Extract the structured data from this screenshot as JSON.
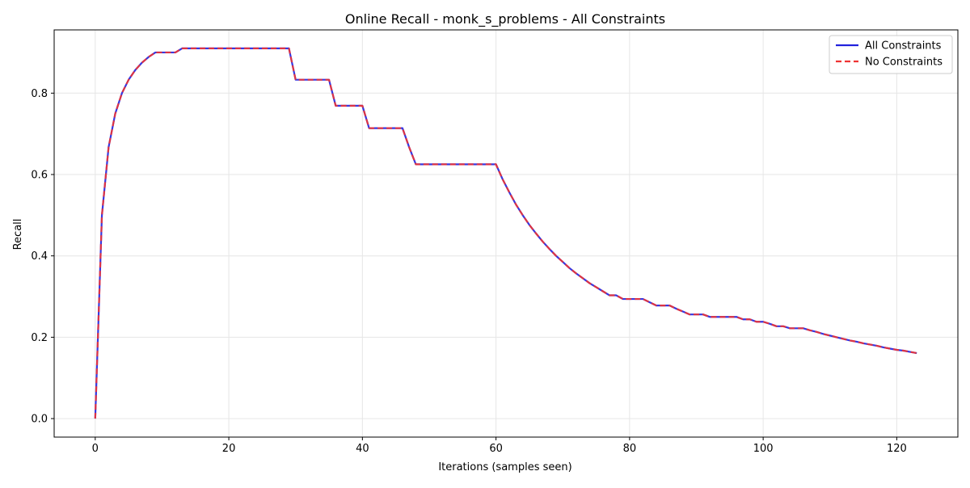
{
  "chart_data": {
    "type": "line",
    "title": "Online Recall - monk_s_problems - All Constraints",
    "xlabel": "Iterations (samples seen)",
    "ylabel": "Recall",
    "xlim": [
      -6.15,
      129.15
    ],
    "ylim": [
      -0.0455,
      0.9555
    ],
    "xticks": [
      0,
      20,
      40,
      60,
      80,
      100,
      120
    ],
    "yticks": [
      0.0,
      0.2,
      0.4,
      0.6,
      0.8
    ],
    "xtick_labels": [
      "0",
      "20",
      "40",
      "60",
      "80",
      "100",
      "120"
    ],
    "ytick_labels": [
      "0.0",
      "0.2",
      "0.4",
      "0.6",
      "0.8"
    ],
    "grid": true,
    "legend_position": "upper-right",
    "series": [
      {
        "name": "All Constraints",
        "color": "#2222dd",
        "style": "solid",
        "x": [
          0,
          1,
          2,
          3,
          4,
          5,
          6,
          7,
          8,
          9,
          10,
          11,
          12,
          13,
          14,
          15,
          16,
          17,
          18,
          19,
          20,
          21,
          22,
          23,
          24,
          25,
          26,
          27,
          28,
          29,
          30,
          31,
          32,
          33,
          34,
          35,
          36,
          37,
          38,
          39,
          40,
          41,
          42,
          43,
          44,
          45,
          46,
          47,
          48,
          49,
          50,
          51,
          52,
          53,
          54,
          55,
          56,
          57,
          58,
          59,
          60,
          61,
          62,
          63,
          64,
          65,
          66,
          67,
          68,
          69,
          70,
          71,
          72,
          73,
          74,
          75,
          76,
          77,
          78,
          79,
          80,
          81,
          82,
          83,
          84,
          85,
          86,
          87,
          88,
          89,
          90,
          91,
          92,
          93,
          94,
          95,
          96,
          97,
          98,
          99,
          100,
          101,
          102,
          103,
          104,
          105,
          106,
          107,
          108,
          109,
          110,
          111,
          112,
          113,
          114,
          115,
          116,
          117,
          118,
          119,
          120,
          121,
          122,
          123
        ],
        "y": [
          0.0,
          0.5,
          0.667,
          0.75,
          0.8,
          0.833,
          0.857,
          0.875,
          0.889,
          0.9,
          0.9,
          0.9,
          0.9,
          0.91,
          0.91,
          0.91,
          0.91,
          0.91,
          0.91,
          0.91,
          0.91,
          0.91,
          0.91,
          0.91,
          0.91,
          0.91,
          0.91,
          0.91,
          0.91,
          0.91,
          0.833,
          0.833,
          0.833,
          0.833,
          0.833,
          0.833,
          0.769,
          0.769,
          0.769,
          0.769,
          0.769,
          0.714,
          0.714,
          0.714,
          0.714,
          0.714,
          0.714,
          0.667,
          0.625,
          0.625,
          0.625,
          0.625,
          0.625,
          0.625,
          0.625,
          0.625,
          0.625,
          0.625,
          0.625,
          0.625,
          0.625,
          0.588,
          0.556,
          0.526,
          0.5,
          0.476,
          0.455,
          0.435,
          0.417,
          0.4,
          0.385,
          0.37,
          0.357,
          0.345,
          0.333,
          0.323,
          0.313,
          0.303,
          0.303,
          0.294,
          0.294,
          0.294,
          0.294,
          0.286,
          0.278,
          0.278,
          0.278,
          0.27,
          0.263,
          0.256,
          0.256,
          0.256,
          0.25,
          0.25,
          0.25,
          0.25,
          0.25,
          0.244,
          0.244,
          0.238,
          0.238,
          0.233,
          0.227,
          0.227,
          0.222,
          0.222,
          0.222,
          0.217,
          0.213,
          0.208,
          0.204,
          0.2,
          0.196,
          0.192,
          0.189,
          0.185,
          0.182,
          0.179,
          0.175,
          0.172,
          0.169,
          0.167,
          0.164,
          0.161
        ]
      },
      {
        "name": "No Constraints",
        "color": "#ee3333",
        "style": "dashed",
        "x": [
          0,
          1,
          2,
          3,
          4,
          5,
          6,
          7,
          8,
          9,
          10,
          11,
          12,
          13,
          14,
          15,
          16,
          17,
          18,
          19,
          20,
          21,
          22,
          23,
          24,
          25,
          26,
          27,
          28,
          29,
          30,
          31,
          32,
          33,
          34,
          35,
          36,
          37,
          38,
          39,
          40,
          41,
          42,
          43,
          44,
          45,
          46,
          47,
          48,
          49,
          50,
          51,
          52,
          53,
          54,
          55,
          56,
          57,
          58,
          59,
          60,
          61,
          62,
          63,
          64,
          65,
          66,
          67,
          68,
          69,
          70,
          71,
          72,
          73,
          74,
          75,
          76,
          77,
          78,
          79,
          80,
          81,
          82,
          83,
          84,
          85,
          86,
          87,
          88,
          89,
          90,
          91,
          92,
          93,
          94,
          95,
          96,
          97,
          98,
          99,
          100,
          101,
          102,
          103,
          104,
          105,
          106,
          107,
          108,
          109,
          110,
          111,
          112,
          113,
          114,
          115,
          116,
          117,
          118,
          119,
          120,
          121,
          122,
          123
        ],
        "y": [
          0.0,
          0.5,
          0.667,
          0.75,
          0.8,
          0.833,
          0.857,
          0.875,
          0.889,
          0.9,
          0.9,
          0.9,
          0.9,
          0.91,
          0.91,
          0.91,
          0.91,
          0.91,
          0.91,
          0.91,
          0.91,
          0.91,
          0.91,
          0.91,
          0.91,
          0.91,
          0.91,
          0.91,
          0.91,
          0.91,
          0.833,
          0.833,
          0.833,
          0.833,
          0.833,
          0.833,
          0.769,
          0.769,
          0.769,
          0.769,
          0.769,
          0.714,
          0.714,
          0.714,
          0.714,
          0.714,
          0.714,
          0.667,
          0.625,
          0.625,
          0.625,
          0.625,
          0.625,
          0.625,
          0.625,
          0.625,
          0.625,
          0.625,
          0.625,
          0.625,
          0.625,
          0.588,
          0.556,
          0.526,
          0.5,
          0.476,
          0.455,
          0.435,
          0.417,
          0.4,
          0.385,
          0.37,
          0.357,
          0.345,
          0.333,
          0.323,
          0.313,
          0.303,
          0.303,
          0.294,
          0.294,
          0.294,
          0.294,
          0.286,
          0.278,
          0.278,
          0.278,
          0.27,
          0.263,
          0.256,
          0.256,
          0.256,
          0.25,
          0.25,
          0.25,
          0.25,
          0.25,
          0.244,
          0.244,
          0.238,
          0.238,
          0.233,
          0.227,
          0.227,
          0.222,
          0.222,
          0.222,
          0.217,
          0.213,
          0.208,
          0.204,
          0.2,
          0.196,
          0.192,
          0.189,
          0.185,
          0.182,
          0.179,
          0.175,
          0.172,
          0.169,
          0.167,
          0.164,
          0.161
        ]
      }
    ]
  }
}
